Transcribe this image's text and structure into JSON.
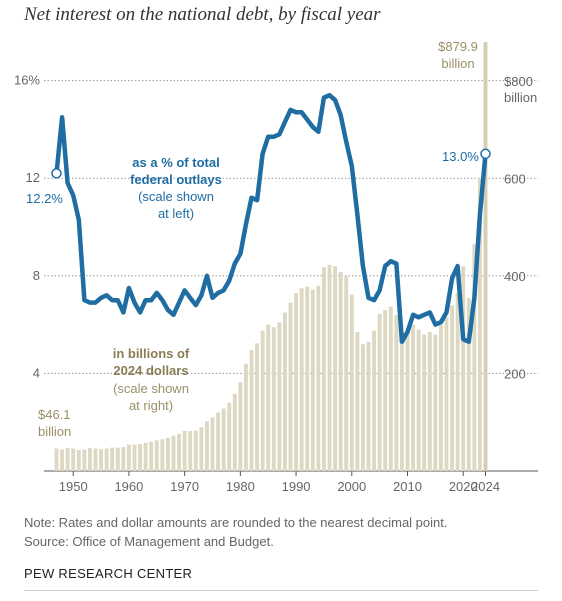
{
  "title": "Net interest on the national debt, by fiscal year",
  "note": "Note: Rates and dollar amounts are rounded to the nearest decimal point.",
  "source": "Source: Office of Management and Budget.",
  "brand": "PEW RESEARCH CENTER",
  "colors": {
    "line": "#1f6da3",
    "bar": "#ddd8c2",
    "bar_last": "#d4ceb2",
    "tan_text": "#9b8f68",
    "grid": "#9a9a9a"
  },
  "annotations": {
    "line_label_1": "as a % of total",
    "line_label_2": "federal outlays",
    "line_note_1": "(scale shown",
    "line_note_2": "at left)",
    "bar_label_1": "in billions of",
    "bar_label_2": "2024 dollars",
    "bar_note_1": "(scale shown",
    "bar_note_2": "at right)",
    "start_pct": "12.2%",
    "end_pct": "13.0%",
    "start_dollar_1": "$46.1",
    "start_dollar_2": "billion",
    "end_dollar_1": "$879.9",
    "end_dollar_2": "billion"
  },
  "chart_data": {
    "type": "bar+line",
    "x": [
      1947,
      1948,
      1949,
      1950,
      1951,
      1952,
      1953,
      1954,
      1955,
      1956,
      1957,
      1958,
      1959,
      1960,
      1961,
      1962,
      1963,
      1964,
      1965,
      1966,
      1967,
      1968,
      1969,
      1970,
      1971,
      1972,
      1973,
      1974,
      1975,
      1976,
      1977,
      1978,
      1979,
      1980,
      1981,
      1982,
      1983,
      1984,
      1985,
      1986,
      1987,
      1988,
      1989,
      1990,
      1991,
      1992,
      1993,
      1994,
      1995,
      1996,
      1997,
      1998,
      1999,
      2000,
      2001,
      2002,
      2003,
      2004,
      2005,
      2006,
      2007,
      2008,
      2009,
      2010,
      2011,
      2012,
      2013,
      2014,
      2015,
      2016,
      2017,
      2018,
      2019,
      2020,
      2021,
      2022,
      2023,
      2024
    ],
    "x_ticks": [
      "1950",
      "1960",
      "1970",
      "1980",
      "1990",
      "2000",
      "2010",
      "2020",
      "2024"
    ],
    "left_axis": {
      "ticks": [
        "4",
        "8",
        "12",
        "16%"
      ],
      "values": [
        4,
        8,
        12,
        16
      ],
      "range": [
        0,
        17
      ]
    },
    "right_axis": {
      "ticks": [
        "200",
        "400",
        "600",
        "$800"
      ],
      "values": [
        200,
        400,
        600,
        800
      ],
      "unit_label": "billion",
      "range": [
        0,
        850
      ]
    },
    "series": [
      {
        "name": "in billions of 2024 dollars",
        "axis": "right",
        "kind": "bar",
        "values": [
          46.1,
          44,
          47,
          46,
          43,
          44,
          47,
          46,
          45,
          46,
          48,
          48,
          49,
          54,
          54,
          55,
          58,
          60,
          63,
          65,
          68,
          72,
          76,
          82,
          82,
          83,
          90,
          102,
          110,
          120,
          128,
          140,
          158,
          182,
          220,
          248,
          262,
          288,
          300,
          295,
          305,
          325,
          345,
          365,
          375,
          378,
          372,
          380,
          418,
          423,
          420,
          408,
          400,
          362,
          285,
          260,
          265,
          288,
          322,
          330,
          337,
          320,
          285,
          285,
          300,
          290,
          280,
          285,
          280,
          300,
          315,
          340,
          365,
          420,
          355,
          465,
          600,
          879.9
        ]
      },
      {
        "name": "as a % of total federal outlays",
        "axis": "left",
        "kind": "line",
        "values": [
          12.2,
          14.5,
          11.8,
          11.3,
          10.3,
          7.0,
          6.9,
          6.9,
          7.1,
          7.2,
          7.0,
          7.0,
          6.5,
          7.5,
          6.9,
          6.5,
          7.0,
          7.0,
          7.3,
          7.0,
          6.6,
          6.4,
          6.9,
          7.4,
          7.1,
          6.8,
          7.2,
          8.0,
          7.1,
          7.3,
          7.4,
          7.8,
          8.5,
          8.9,
          10.1,
          11.2,
          11.1,
          13.0,
          13.7,
          13.7,
          13.8,
          14.3,
          14.8,
          14.7,
          14.7,
          14.4,
          14.1,
          13.9,
          15.3,
          15.4,
          15.2,
          14.6,
          13.5,
          12.5,
          10.5,
          8.4,
          7.1,
          7.0,
          7.4,
          8.4,
          8.6,
          8.5,
          5.3,
          5.7,
          6.4,
          6.3,
          6.4,
          6.5,
          6.0,
          6.1,
          6.5,
          7.9,
          8.4,
          5.4,
          5.3,
          7.1,
          10.5,
          13.0
        ]
      }
    ],
    "grid": true
  }
}
